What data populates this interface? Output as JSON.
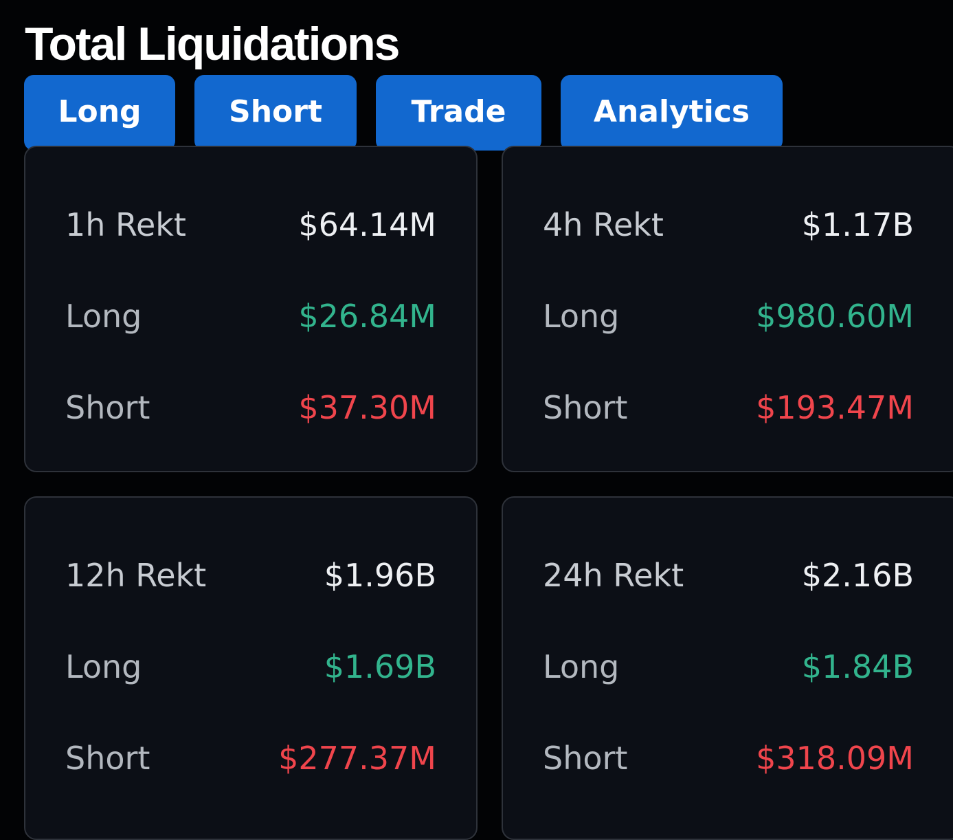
{
  "header": {
    "title": "Total Liquidations"
  },
  "tabs": [
    {
      "label": "Long"
    },
    {
      "label": "Short"
    },
    {
      "label": "Trade"
    },
    {
      "label": "Analytics"
    }
  ],
  "colors": {
    "accent": "#1268cf",
    "long": "#32b48d",
    "short": "#f0454c",
    "background": "#020305",
    "card": "#0c0f16"
  },
  "cards": [
    {
      "period_label": "1h Rekt",
      "total": "$64.14M",
      "long_label": "Long",
      "long_value": "$26.84M",
      "short_label": "Short",
      "short_value": "$37.30M"
    },
    {
      "period_label": "4h Rekt",
      "total": "$1.17B",
      "long_label": "Long",
      "long_value": "$980.60M",
      "short_label": "Short",
      "short_value": "$193.47M"
    },
    {
      "period_label": "12h Rekt",
      "total": "$1.96B",
      "long_label": "Long",
      "long_value": "$1.69B",
      "short_label": "Short",
      "short_value": "$277.37M"
    },
    {
      "period_label": "24h Rekt",
      "total": "$2.16B",
      "long_label": "Long",
      "long_value": "$1.84B",
      "short_label": "Short",
      "short_value": "$318.09M"
    }
  ]
}
